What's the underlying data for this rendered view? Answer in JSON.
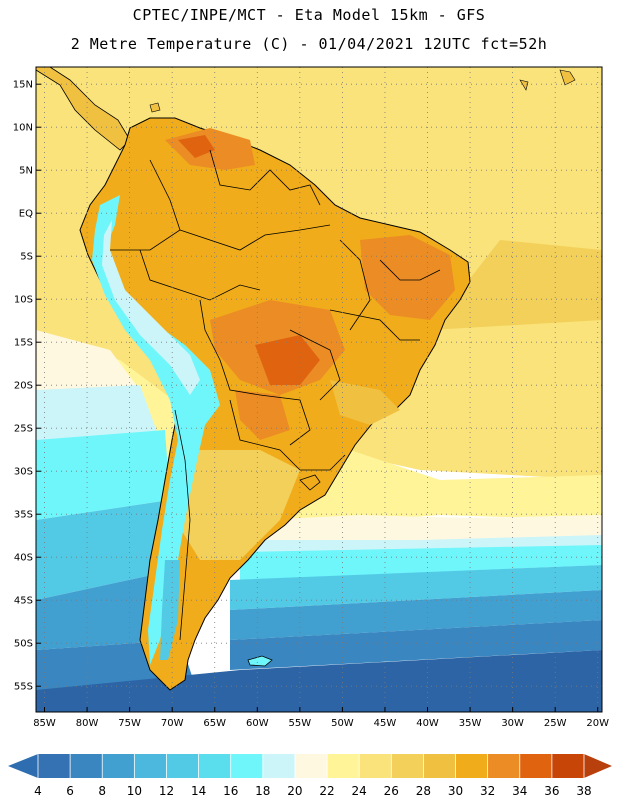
{
  "header": {
    "line1": "CPTEC/INPE/MCT -  Eta Model 15km - GFS",
    "line2": "2 Metre Temperature (C) - 01/04/2021 12UTC fct=52h"
  },
  "map": {
    "lon_range": [
      -86,
      -19.5
    ],
    "lat_range": [
      -58,
      17
    ],
    "lat_ticks": [
      {
        "value": 15,
        "label": "15N"
      },
      {
        "value": 10,
        "label": "10N"
      },
      {
        "value": 5,
        "label": "5N"
      },
      {
        "value": 0,
        "label": "EQ"
      },
      {
        "value": -5,
        "label": "5S"
      },
      {
        "value": -10,
        "label": "10S"
      },
      {
        "value": -15,
        "label": "15S"
      },
      {
        "value": -20,
        "label": "20S"
      },
      {
        "value": -25,
        "label": "25S"
      },
      {
        "value": -30,
        "label": "30S"
      },
      {
        "value": -35,
        "label": "35S"
      },
      {
        "value": -40,
        "label": "40S"
      },
      {
        "value": -45,
        "label": "45S"
      },
      {
        "value": -50,
        "label": "50S"
      },
      {
        "value": -55,
        "label": "55S"
      }
    ],
    "lon_ticks": [
      {
        "value": -85,
        "label": "85W"
      },
      {
        "value": -80,
        "label": "80W"
      },
      {
        "value": -75,
        "label": "75W"
      },
      {
        "value": -70,
        "label": "70W"
      },
      {
        "value": -65,
        "label": "65W"
      },
      {
        "value": -60,
        "label": "60W"
      },
      {
        "value": -55,
        "label": "55W"
      },
      {
        "value": -50,
        "label": "50W"
      },
      {
        "value": -45,
        "label": "45W"
      },
      {
        "value": -40,
        "label": "40W"
      },
      {
        "value": -35,
        "label": "35W"
      },
      {
        "value": -30,
        "label": "30W"
      },
      {
        "value": -25,
        "label": "25W"
      },
      {
        "value": -20,
        "label": "20W"
      }
    ]
  },
  "colorbar": {
    "values": [
      "4",
      "6",
      "8",
      "10",
      "12",
      "14",
      "16",
      "18",
      "20",
      "22",
      "24",
      "26",
      "28",
      "30",
      "32",
      "34",
      "36",
      "38"
    ],
    "under_color": "#2e6eb0",
    "over_color": "#b8400c",
    "colors": [
      "#3472b3",
      "#3a86c1",
      "#41a0d0",
      "#4cb8de",
      "#52cae6",
      "#5adeee",
      "#6ef6fb",
      "#ccf5fa",
      "#fff8e0",
      "#fff598",
      "#f9e37a",
      "#f3d05a",
      "#f0c040",
      "#f0ac1a",
      "#ec8c24",
      "#e06410",
      "#c84508"
    ]
  },
  "colors": {
    "ocean_deep": "#2c64a5",
    "ocean_mid": "#3b8ac4",
    "ocean_cool": "#52cae6",
    "ocean_cyan": "#6ef6fb",
    "ocean_pale": "#ccf5fa",
    "ocean_cream": "#fff8e0",
    "ocean_warm": "#f8e47c",
    "ocean_trop": "#f3d05a",
    "land": "#f0ac1a",
    "land_hot": "#ec8c24",
    "land_hotter": "#e06410",
    "land_hottest": "#c84508",
    "andes": "#6ef6fb",
    "andes_high": "#ccf5fa",
    "border": "#000000"
  }
}
